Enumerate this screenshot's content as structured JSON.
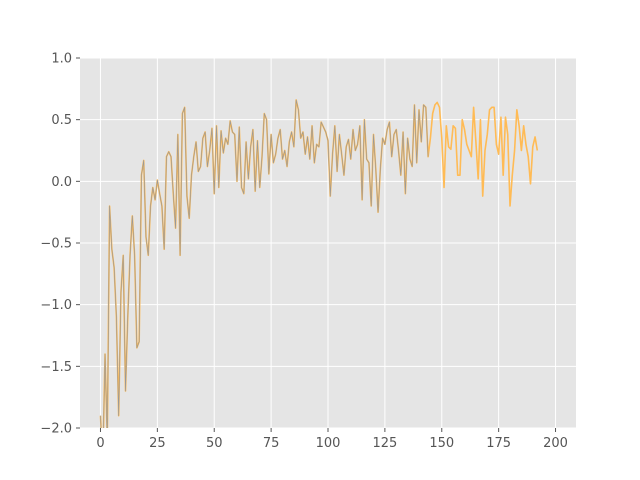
{
  "chart_data": {
    "type": "line",
    "title": "",
    "xlabel": "",
    "ylabel": "",
    "xlim": [
      -9,
      209
    ],
    "ylim": [
      -2.0,
      1.0
    ],
    "x_ticks": [
      0,
      25,
      50,
      75,
      100,
      125,
      150,
      175,
      200
    ],
    "y_ticks": [
      -2.0,
      -1.5,
      -1.0,
      -0.5,
      0.0,
      0.5,
      1.0
    ],
    "x_tick_labels": [
      "0",
      "25",
      "50",
      "75",
      "100",
      "125",
      "150",
      "175",
      "200"
    ],
    "y_tick_labels": [
      "−2.0",
      "−1.5",
      "−1.0",
      "−0.5",
      "0.0",
      "0.5",
      "1.0"
    ],
    "grid": true,
    "series": [
      {
        "color": "#ffbb55",
        "x_start": 0,
        "x_step": 1,
        "values": [
          -1.9,
          -2.3,
          -1.4,
          -2.1,
          -0.2,
          -0.55,
          -0.7,
          -1.1,
          -1.9,
          -0.9,
          -0.6,
          -1.7,
          -1.1,
          -0.6,
          -0.28,
          -0.6,
          -1.35,
          -1.3,
          0.05,
          0.17,
          -0.45,
          -0.6,
          -0.2,
          -0.05,
          -0.15,
          0.01,
          -0.1,
          -0.2,
          -0.55,
          0.2,
          0.24,
          0.2,
          -0.1,
          -0.38,
          0.38,
          -0.6,
          0.55,
          0.6,
          -0.12,
          -0.3,
          0.05,
          0.2,
          0.32,
          0.08,
          0.12,
          0.35,
          0.4,
          0.12,
          0.25,
          0.43,
          -0.1,
          0.45,
          -0.05,
          0.41,
          0.23,
          0.35,
          0.3,
          0.49,
          0.4,
          0.38,
          0.0,
          0.44,
          -0.05,
          -0.1,
          0.32,
          0.02,
          0.28,
          0.42,
          -0.08,
          0.33,
          -0.05,
          0.2,
          0.55,
          0.5,
          0.06,
          0.38,
          0.15,
          0.22,
          0.35,
          0.42,
          0.18,
          0.25,
          0.12,
          0.32,
          0.4,
          0.28,
          0.66,
          0.58,
          0.35,
          0.4,
          0.22,
          0.36,
          0.18,
          0.45,
          0.15,
          0.3,
          0.28,
          0.48,
          0.44,
          0.4,
          0.33,
          -0.12,
          0.22,
          0.45,
          0.08,
          0.38,
          0.22,
          0.05,
          0.28,
          0.34,
          0.18,
          0.42,
          0.25,
          0.3,
          0.45,
          -0.15,
          0.5,
          0.18,
          0.15,
          -0.2,
          0.38,
          0.1,
          -0.25,
          0.1,
          0.35,
          0.3,
          0.42,
          0.48,
          0.2,
          0.38,
          0.42,
          0.25,
          0.05,
          0.4,
          -0.1,
          0.35,
          0.18,
          0.12,
          0.62,
          0.15,
          0.58,
          0.32,
          0.62,
          0.6,
          0.2,
          0.35,
          0.55,
          0.62,
          0.64,
          0.6,
          0.35,
          -0.05,
          0.45,
          0.28,
          0.26,
          0.45,
          0.43,
          0.05,
          0.05,
          0.5,
          0.42,
          0.3,
          0.25,
          0.2,
          0.6,
          0.32,
          0.02,
          0.5,
          -0.12,
          0.25,
          0.38,
          0.58,
          0.6,
          0.6,
          0.3,
          0.22,
          0.52,
          0.05,
          0.52,
          0.38,
          -0.2,
          0.05,
          0.25,
          0.58,
          0.45,
          0.25,
          0.45,
          0.3,
          0.2,
          -0.02,
          0.28,
          0.36,
          0.25
        ]
      },
      {
        "color": "#999999",
        "x_start": 0,
        "x_step": 1,
        "values": [
          -1.9,
          -2.3,
          -1.4,
          -2.1,
          -0.2,
          -0.55,
          -0.7,
          -1.1,
          -1.9,
          -0.9,
          -0.6,
          -1.7,
          -1.1,
          -0.6,
          -0.28,
          -0.6,
          -1.35,
          -1.3,
          0.05,
          0.17,
          -0.45,
          -0.6,
          -0.2,
          -0.05,
          -0.15,
          0.01,
          -0.1,
          -0.2,
          -0.55,
          0.2,
          0.24,
          0.2,
          -0.1,
          -0.38,
          0.38,
          -0.6,
          0.55,
          0.6,
          -0.12,
          -0.3,
          0.05,
          0.2,
          0.32,
          0.08,
          0.12,
          0.35,
          0.4,
          0.12,
          0.25,
          0.43,
          -0.1,
          0.45,
          -0.05,
          0.41,
          0.23,
          0.35,
          0.3,
          0.49,
          0.4,
          0.38,
          0.0,
          0.44,
          -0.05,
          -0.1,
          0.32,
          0.02,
          0.28,
          0.42,
          -0.08,
          0.33,
          -0.05,
          0.2,
          0.55,
          0.5,
          0.06,
          0.38,
          0.15,
          0.22,
          0.35,
          0.42,
          0.18,
          0.25,
          0.12,
          0.32,
          0.4,
          0.28,
          0.66,
          0.58,
          0.35,
          0.4,
          0.22,
          0.36,
          0.18,
          0.45,
          0.15,
          0.3,
          0.28,
          0.48,
          0.44,
          0.4,
          0.33,
          -0.12,
          0.22,
          0.45,
          0.08,
          0.38,
          0.22,
          0.05,
          0.28,
          0.34,
          0.18,
          0.42,
          0.25,
          0.3,
          0.45,
          -0.15,
          0.5,
          0.18,
          0.15,
          -0.2,
          0.38,
          0.1,
          -0.25,
          0.1,
          0.35,
          0.3,
          0.42,
          0.48,
          0.2,
          0.38,
          0.42,
          0.25,
          0.05,
          0.4,
          -0.1,
          0.35,
          0.18,
          0.12,
          0.62,
          0.15,
          0.58,
          0.32,
          0.62,
          0.6,
          0.2
        ]
      }
    ]
  }
}
